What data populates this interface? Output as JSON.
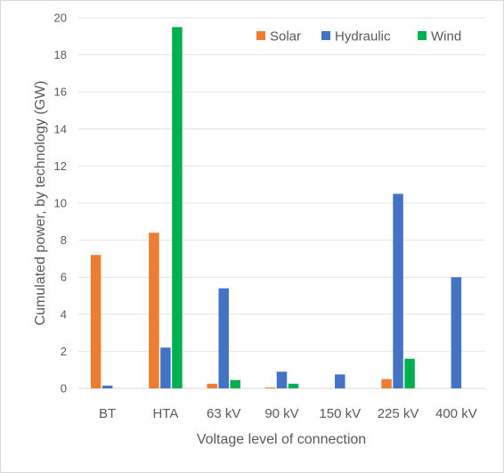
{
  "chart_data": {
    "type": "bar",
    "title": "",
    "xlabel": "Voltage level of connection",
    "ylabel": "Cumulated power, by technology (GW)",
    "ylim": [
      0,
      20
    ],
    "yticks": [
      0,
      2,
      4,
      6,
      8,
      10,
      12,
      14,
      16,
      18,
      20
    ],
    "grid": true,
    "legend_position": "top-right",
    "categories": [
      "BT",
      "HTA",
      "63 kV",
      "90 kV",
      "150 kV",
      "225 kV",
      "400 kV"
    ],
    "series": [
      {
        "name": "Solar",
        "color": "#ed7d31",
        "values": [
          7.2,
          8.4,
          0.25,
          0.05,
          0.0,
          0.5,
          0.0
        ]
      },
      {
        "name": "Hydraulic",
        "color": "#4472c4",
        "values": [
          0.15,
          2.2,
          5.4,
          0.9,
          0.75,
          10.5,
          6.0
        ]
      },
      {
        "name": "Wind",
        "color": "#00b050",
        "values": [
          0.0,
          19.5,
          0.45,
          0.25,
          0.0,
          1.6,
          0.0
        ]
      }
    ]
  }
}
